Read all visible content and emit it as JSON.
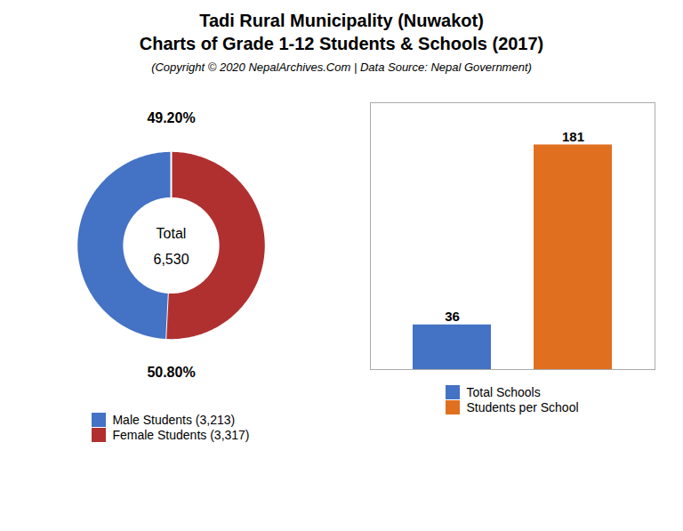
{
  "title": [
    "Tadi Rural Municipality (Nuwakot)",
    "Charts of Grade 1-12 Students & Schools (2017)"
  ],
  "subtitle": "(Copyright © 2020 NepalArchives.Com | Data Source: Nepal Government)",
  "chart_data": [
    {
      "type": "pie",
      "categories": [
        "Male Students (3,213)",
        "Female Students (3,317)"
      ],
      "values": [
        49.2,
        50.8
      ],
      "value_labels": [
        "49.20%",
        "50.80%"
      ],
      "colors": [
        "#4472C4",
        "#B03030"
      ],
      "data_labels": true,
      "legend": "bottom",
      "annotations": [
        "Total",
        "6,530"
      ]
    },
    {
      "type": "bar",
      "categories": [
        "Total Schools",
        "Students per School"
      ],
      "values": [
        36,
        181
      ],
      "colors": [
        "#4472C4",
        "#E07020"
      ],
      "ylim": [
        0,
        215
      ],
      "yticks": [],
      "tick_labels": false,
      "data_labels": true,
      "legend": "bottom"
    }
  ]
}
